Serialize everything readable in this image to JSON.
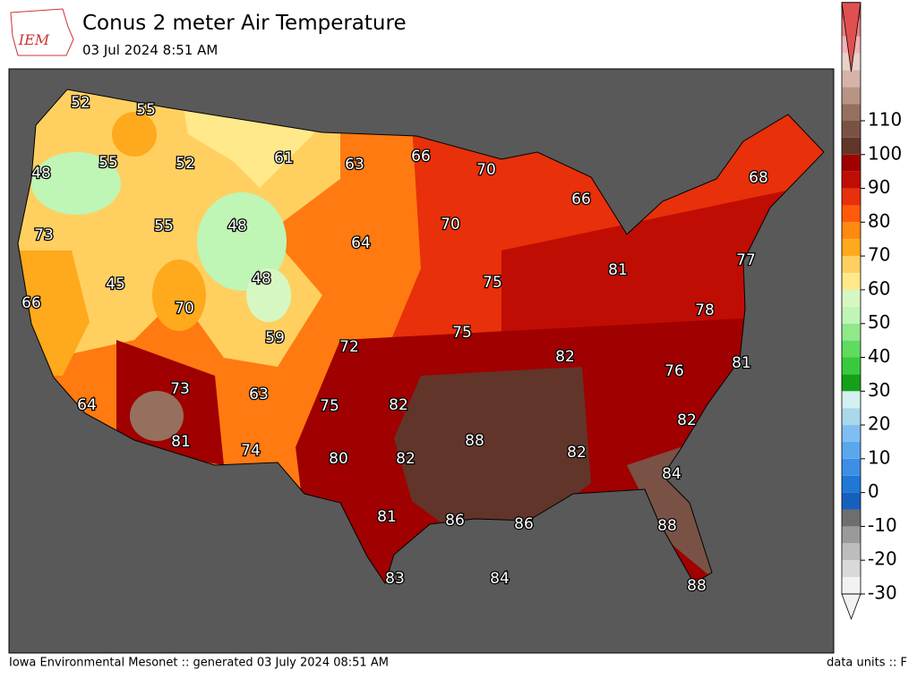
{
  "header": {
    "logo": "IEM",
    "title": "Conus 2 meter Air Temperature",
    "subtitle": "03 Jul 2024 8:51 AM"
  },
  "map": {
    "labels": [
      52,
      55,
      48,
      55,
      52,
      61,
      63,
      66,
      70,
      66,
      73,
      55,
      48,
      70,
      64,
      45,
      48,
      66,
      70,
      75,
      81,
      68,
      77,
      59,
      72,
      75,
      78,
      82,
      76,
      81,
      73,
      63,
      75,
      82,
      64,
      81,
      74,
      80,
      82,
      88,
      82,
      84,
      82,
      81,
      86,
      86,
      88,
      83,
      84,
      88
    ]
  },
  "colorbar": {
    "ticks": [
      -30,
      -20,
      -10,
      0,
      10,
      20,
      30,
      40,
      50,
      60,
      70,
      80,
      90,
      100,
      110
    ],
    "colors": [
      "#f2f2f2",
      "#d9d9d9",
      "#bdbdbd",
      "#9a9a9a",
      "#6e6e6e",
      "#1560bd",
      "#1f78d6",
      "#3d8fe6",
      "#5aa7ee",
      "#7ebef2",
      "#a9d8ea",
      "#d5f0f0",
      "#16a01a",
      "#39c93c",
      "#5fdc5f",
      "#8fe88a",
      "#bff5b5",
      "#d6f7c2",
      "#ffe98a",
      "#ffd060",
      "#ffa91c",
      "#ff8a10",
      "#ff5a0a",
      "#e8300a",
      "#c00d04",
      "#a00000",
      "#62352a",
      "#7a5245",
      "#95705f",
      "#b89484",
      "#d6b3a8",
      "#ead0cb",
      "#f2b3b3",
      "#e88080",
      "#e05050"
    ]
  },
  "footer": {
    "left": "Iowa Environmental Mesonet :: generated 03 July 2024 08:51 AM",
    "right": "data units :: F"
  }
}
